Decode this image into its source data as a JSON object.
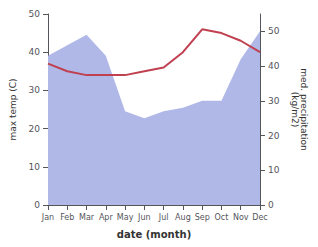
{
  "chart_data": {
    "type": "line",
    "xlabel": "date (month)",
    "ylabel": "max temp (C)",
    "y2label": "med. precipitation\n(kg/m2)",
    "categories": [
      "Jan",
      "Feb",
      "Mar",
      "Apr",
      "May",
      "Jun",
      "Jul",
      "Aug",
      "Sep",
      "Oct",
      "Nov",
      "Dec"
    ],
    "series": [
      {
        "type": "area",
        "axis": "y2",
        "color": "#b0b8e8",
        "values": [
          43,
          46,
          49,
          43,
          27,
          25,
          27,
          28,
          30,
          30,
          42,
          50
        ]
      },
      {
        "type": "line",
        "color": "#c04050",
        "values": [
          37,
          35,
          34,
          34,
          34,
          35,
          36,
          40,
          46,
          45,
          43,
          40
        ]
      }
    ],
    "ylim": [
      0,
      50
    ],
    "yticks": [
      0,
      10,
      20,
      30,
      40,
      50
    ],
    "y2lim": [
      0,
      55
    ],
    "y2ticks": [
      0,
      10,
      20,
      30,
      40,
      50
    ],
    "grid": false
  }
}
